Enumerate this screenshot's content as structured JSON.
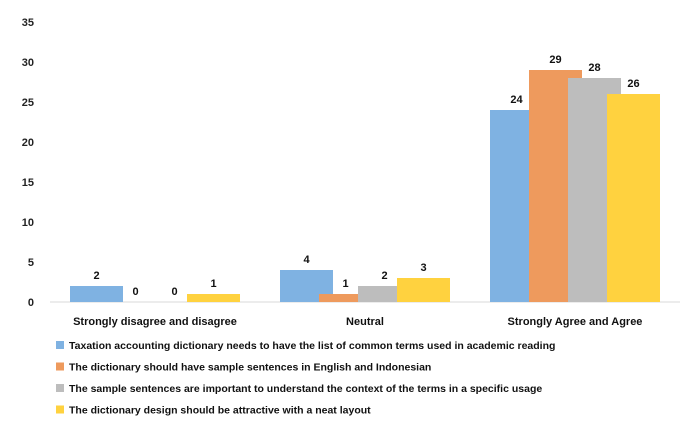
{
  "chart_data": {
    "type": "bar",
    "categories": [
      "Strongly disagree and disagree",
      "Neutral",
      "Strongly Agree and Agree"
    ],
    "series": [
      {
        "name": "Taxation accounting dictionary needs to have the list of common terms used in academic reading",
        "color": "#7FB2E2",
        "values": [
          2,
          4,
          24
        ]
      },
      {
        "name": "The dictionary should have sample sentences in English and Indonesian",
        "color": "#EE9A5D",
        "values": [
          0,
          1,
          29
        ]
      },
      {
        "name": "The sample sentences are important to understand the context of the terms in a specific usage",
        "color": "#BDBDBD",
        "values": [
          0,
          2,
          28
        ]
      },
      {
        "name": "The dictionary design should be attractive with a neat layout",
        "color": "#FFD23F",
        "values": [
          1,
          3,
          26
        ]
      }
    ],
    "ylim": [
      0,
      35
    ],
    "yticks": [
      0,
      5,
      10,
      15,
      20,
      25,
      30,
      35
    ],
    "grid": false,
    "legend_position": "bottom",
    "title": "",
    "xlabel": "",
    "ylabel": ""
  }
}
